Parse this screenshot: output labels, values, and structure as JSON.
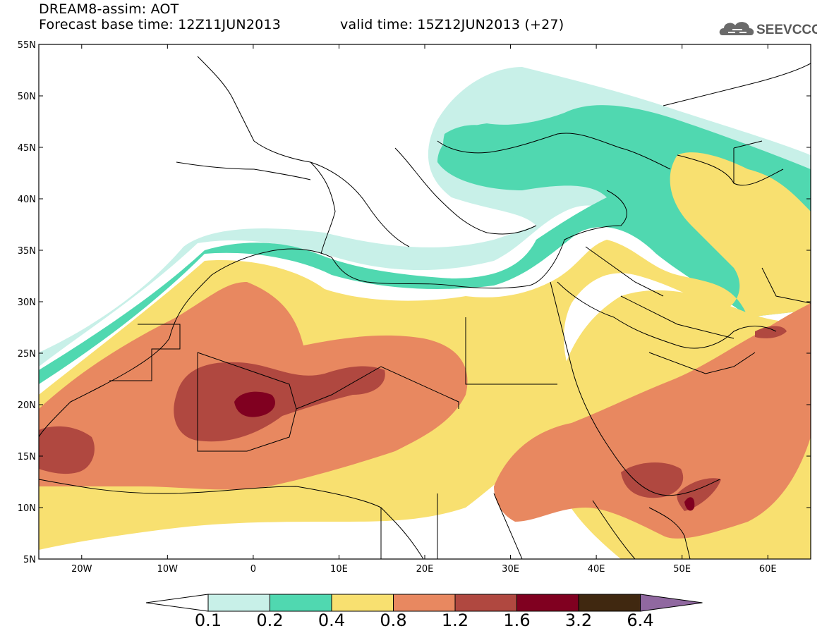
{
  "header": {
    "line1": "DREAM8-assim: AOT",
    "line2": "Forecast base time: 12Z11JUN2013",
    "line3": "valid time: 15Z12JUN2013 (+27)",
    "logo_text": "SEEVCCC"
  },
  "map": {
    "lat_labels": [
      "55N",
      "50N",
      "45N",
      "40N",
      "35N",
      "30N",
      "25N",
      "20N",
      "15N",
      "10N",
      "5N"
    ],
    "lon_labels": [
      "20W",
      "10W",
      "0",
      "10E",
      "20E",
      "30E",
      "40E",
      "50E",
      "60E"
    ],
    "lon_range": [
      -25,
      65
    ],
    "lat_range": [
      5,
      55
    ]
  },
  "colorbar": {
    "levels": [
      "0.1",
      "0.2",
      "0.4",
      "0.8",
      "1.2",
      "1.6",
      "3.2",
      "6.4"
    ],
    "colors": [
      "#ffffff",
      "#c8f0e8",
      "#50d8b0",
      "#f8e070",
      "#e88860",
      "#b04840",
      "#800020",
      "#402810",
      "#9068a0"
    ]
  },
  "colors": {
    "lvl_0_1": "#c8f0e8",
    "lvl_0_2": "#50d8b0",
    "lvl_0_4": "#f8e070",
    "lvl_0_8": "#e88860",
    "lvl_1_2": "#b04840",
    "lvl_1_6": "#800020",
    "lvl_3_2": "#402810",
    "lvl_6_4": "#9068a0"
  }
}
